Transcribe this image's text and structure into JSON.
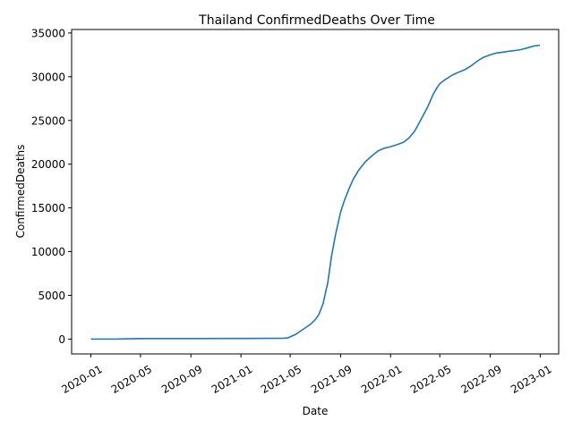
{
  "chart_data": {
    "type": "line",
    "title": "Thailand  ConfirmedDeaths Over Time",
    "xlabel": "Date",
    "ylabel": "ConfirmedDeaths",
    "x_ticks": [
      "2020-01",
      "2020-05",
      "2020-09",
      "2021-01",
      "2021-05",
      "2021-09",
      "2022-01",
      "2022-05",
      "2022-09",
      "2023-01"
    ],
    "y_ticks": [
      0,
      5000,
      10000,
      15000,
      20000,
      25000,
      30000,
      35000
    ],
    "y_tick_labels": [
      "0",
      "5000",
      "10000",
      "15000",
      "20000",
      "25000",
      "30000",
      "35000"
    ],
    "ylim": [
      -1700,
      35400
    ],
    "xlim": [
      "2019-11-15",
      "2023-02-15"
    ],
    "grid": false,
    "series": [
      {
        "color": "#1f77b4",
        "x": [
          "2020-01-01",
          "2020-03-01",
          "2020-04-01",
          "2020-05-01",
          "2020-09-01",
          "2021-01-01",
          "2021-03-01",
          "2021-04-15",
          "2021-04-25",
          "2021-05-15",
          "2021-06-01",
          "2021-06-20",
          "2021-07-01",
          "2021-07-10",
          "2021-07-20",
          "2021-08-01",
          "2021-08-10",
          "2021-08-20",
          "2021-09-01",
          "2021-09-10",
          "2021-09-20",
          "2021-10-01",
          "2021-10-15",
          "2021-11-01",
          "2021-11-15",
          "2021-12-01",
          "2021-12-15",
          "2022-01-01",
          "2022-01-15",
          "2022-02-01",
          "2022-02-15",
          "2022-03-01",
          "2022-03-15",
          "2022-04-01",
          "2022-04-15",
          "2022-04-25",
          "2022-05-01",
          "2022-05-15",
          "2022-06-01",
          "2022-06-15",
          "2022-07-01",
          "2022-07-15",
          "2022-08-01",
          "2022-08-15",
          "2022-09-01",
          "2022-09-15",
          "2022-10-01",
          "2022-10-15",
          "2022-11-01",
          "2022-11-15",
          "2022-12-01",
          "2022-12-15",
          "2022-12-31"
        ],
        "y": [
          0,
          0,
          30,
          56,
          59,
          70,
          85,
          100,
          130,
          550,
          1100,
          1700,
          2200,
          2800,
          4000,
          6500,
          9500,
          12000,
          14500,
          15800,
          17000,
          18200,
          19300,
          20300,
          20900,
          21500,
          21800,
          22000,
          22200,
          22500,
          23000,
          23800,
          25000,
          26500,
          28000,
          28800,
          29200,
          29700,
          30200,
          30500,
          30800,
          31200,
          31800,
          32200,
          32500,
          32700,
          32800,
          32900,
          33000,
          33100,
          33300,
          33500,
          33600
        ]
      }
    ]
  }
}
